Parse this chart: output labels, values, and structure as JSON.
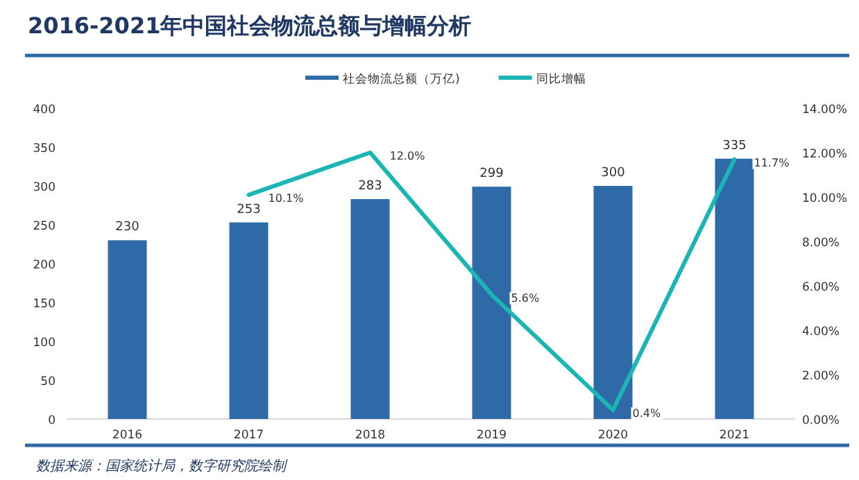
{
  "chart_data": {
    "type": "bar",
    "title": "2016-2021年中国社会物流总额与增幅分析",
    "categories": [
      "2016",
      "2017",
      "2018",
      "2019",
      "2020",
      "2021"
    ],
    "series": [
      {
        "name": "社会物流总额（万亿)",
        "color": "#2e6aa8",
        "values": [
          230,
          253,
          283,
          299,
          300,
          335
        ],
        "value_labels": [
          "230",
          "253",
          "283",
          "299",
          "300",
          "335"
        ]
      },
      {
        "name": "同比增幅",
        "type": "line",
        "axis": "y2",
        "color": "#1bb5b5",
        "values": [
          null,
          10.1,
          12.0,
          5.6,
          0.4,
          11.7
        ],
        "value_labels": [
          null,
          "10.1%",
          "12.0%",
          "5.6%",
          "0.4%",
          "11.7%"
        ]
      }
    ],
    "ylim": [
      0,
      400
    ],
    "yticks": [
      0,
      50,
      100,
      150,
      200,
      250,
      300,
      350,
      400
    ],
    "y2lim": [
      0,
      14
    ],
    "y2ticks": [
      {
        "value": 0,
        "label": "0.00%"
      },
      {
        "value": 2,
        "label": "2.00%"
      },
      {
        "value": 4,
        "label": "4.00%"
      },
      {
        "value": 6,
        "label": "6.00%"
      },
      {
        "value": 8,
        "label": "8.00%"
      },
      {
        "value": 10,
        "label": "10.00%"
      },
      {
        "value": 12,
        "label": "12.00%"
      },
      {
        "value": 14,
        "label": "14.00%"
      }
    ],
    "legend": "top",
    "grid": false,
    "annotations": [
      "数据来源：国家统计局，数字研究院绘制"
    ]
  }
}
